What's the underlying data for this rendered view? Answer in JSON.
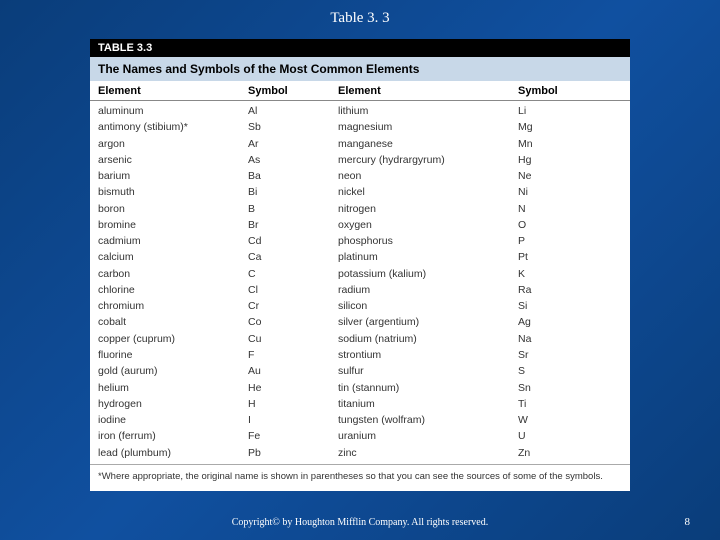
{
  "slide": {
    "title": "Table 3. 3",
    "copyright": "Copyright© by Houghton Mifflin Company.  All rights reserved.",
    "page_number": "8"
  },
  "table": {
    "label": "TABLE 3.3",
    "caption": "The Names and Symbols of the Most Common Elements",
    "headers": {
      "element1": "Element",
      "symbol1": "Symbol",
      "element2": "Element",
      "symbol2": "Symbol"
    },
    "rows": [
      {
        "e1": "aluminum",
        "s1": "Al",
        "e2": "lithium",
        "s2": "Li"
      },
      {
        "e1": "antimony (stibium)*",
        "s1": "Sb",
        "e2": "magnesium",
        "s2": "Mg"
      },
      {
        "e1": "argon",
        "s1": "Ar",
        "e2": "manganese",
        "s2": "Mn"
      },
      {
        "e1": "arsenic",
        "s1": "As",
        "e2": "mercury (hydrargyrum)",
        "s2": "Hg"
      },
      {
        "e1": "barium",
        "s1": "Ba",
        "e2": "neon",
        "s2": "Ne"
      },
      {
        "e1": "bismuth",
        "s1": "Bi",
        "e2": "nickel",
        "s2": "Ni"
      },
      {
        "e1": "boron",
        "s1": "B",
        "e2": "nitrogen",
        "s2": "N"
      },
      {
        "e1": "bromine",
        "s1": "Br",
        "e2": "oxygen",
        "s2": "O"
      },
      {
        "e1": "cadmium",
        "s1": "Cd",
        "e2": "phosphorus",
        "s2": "P"
      },
      {
        "e1": "calcium",
        "s1": "Ca",
        "e2": "platinum",
        "s2": "Pt"
      },
      {
        "e1": "carbon",
        "s1": "C",
        "e2": "potassium (kalium)",
        "s2": "K"
      },
      {
        "e1": "chlorine",
        "s1": "Cl",
        "e2": "radium",
        "s2": "Ra"
      },
      {
        "e1": "chromium",
        "s1": "Cr",
        "e2": "silicon",
        "s2": "Si"
      },
      {
        "e1": "cobalt",
        "s1": "Co",
        "e2": "silver (argentium)",
        "s2": "Ag"
      },
      {
        "e1": "copper (cuprum)",
        "s1": "Cu",
        "e2": "sodium (natrium)",
        "s2": "Na"
      },
      {
        "e1": "fluorine",
        "s1": "F",
        "e2": "strontium",
        "s2": "Sr"
      },
      {
        "e1": "gold (aurum)",
        "s1": "Au",
        "e2": "sulfur",
        "s2": "S"
      },
      {
        "e1": "helium",
        "s1": "He",
        "e2": "tin (stannum)",
        "s2": "Sn"
      },
      {
        "e1": "hydrogen",
        "s1": "H",
        "e2": "titanium",
        "s2": "Ti"
      },
      {
        "e1": "iodine",
        "s1": "I",
        "e2": "tungsten (wolfram)",
        "s2": "W"
      },
      {
        "e1": "iron (ferrum)",
        "s1": "Fe",
        "e2": "uranium",
        "s2": "U"
      },
      {
        "e1": "lead (plumbum)",
        "s1": "Pb",
        "e2": "zinc",
        "s2": "Zn"
      }
    ],
    "footnote": "*Where appropriate, the original name is shown in parentheses so that you can see the sources of some of the symbols."
  }
}
